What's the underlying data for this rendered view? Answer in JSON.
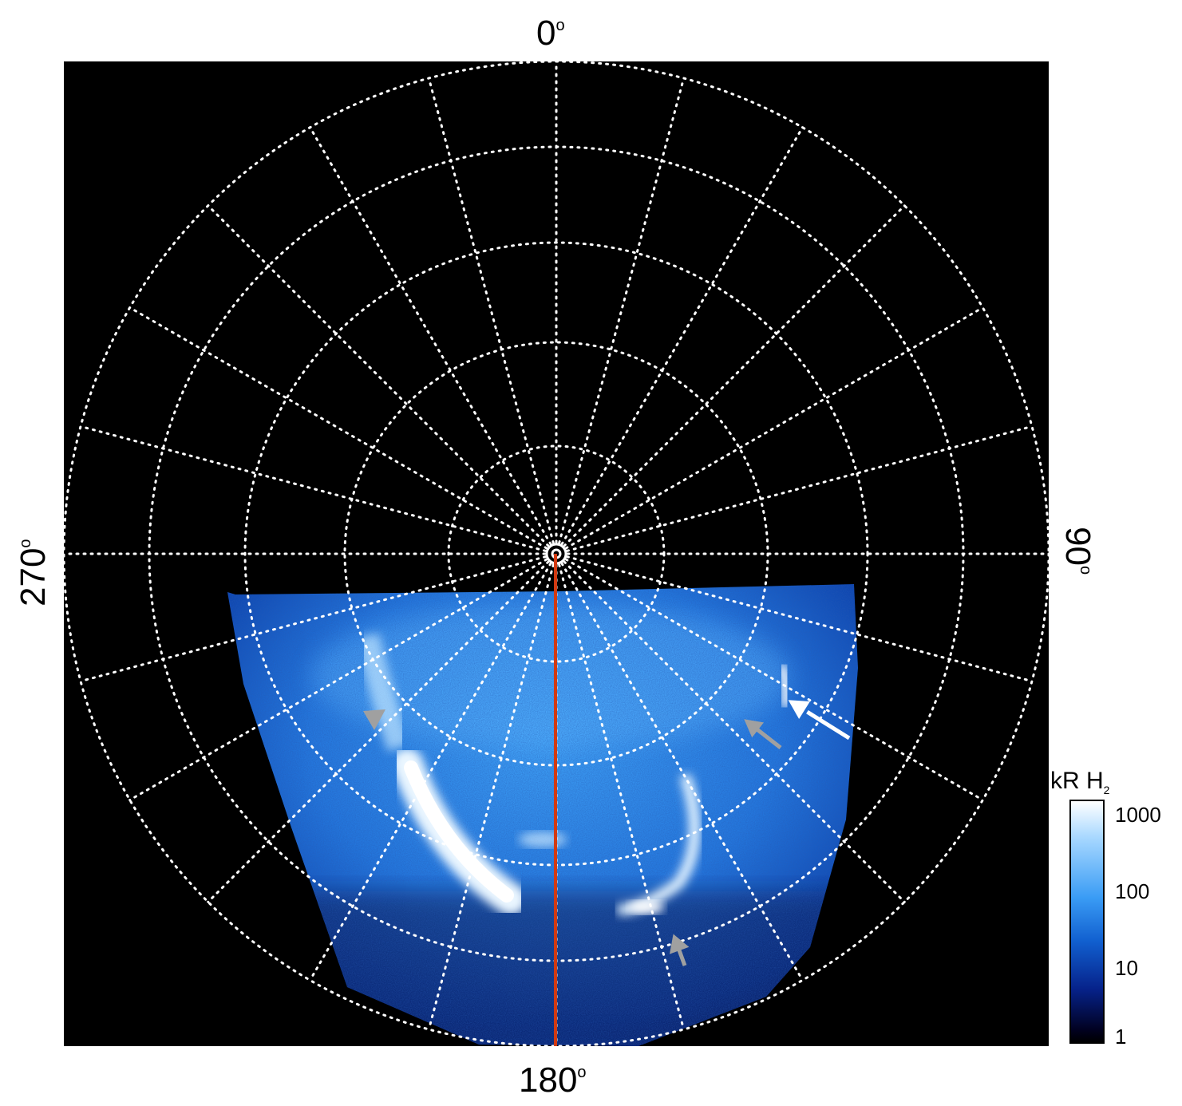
{
  "labels": {
    "top": "0",
    "bottom": "180",
    "left": "270",
    "right": "90",
    "degree": "o"
  },
  "colorbar": {
    "title": "kR H",
    "title_sub": "2",
    "ticks": [
      "1000",
      "100",
      "10",
      "1"
    ],
    "scale": "log"
  },
  "colors": {
    "background": "#000000",
    "grid": "#ffffff",
    "meridian_line": "#d23a12",
    "emission_low": "#06228a",
    "emission_mid": "#2f8ff0",
    "emission_high": "#ffffff",
    "arrow_white": "#ffffff",
    "arrow_gray": "#a0a0a0"
  },
  "image": {
    "projection": "polar",
    "description_items": [
      "auroral-oval",
      "grid",
      "meridian-line",
      "arrows"
    ]
  }
}
